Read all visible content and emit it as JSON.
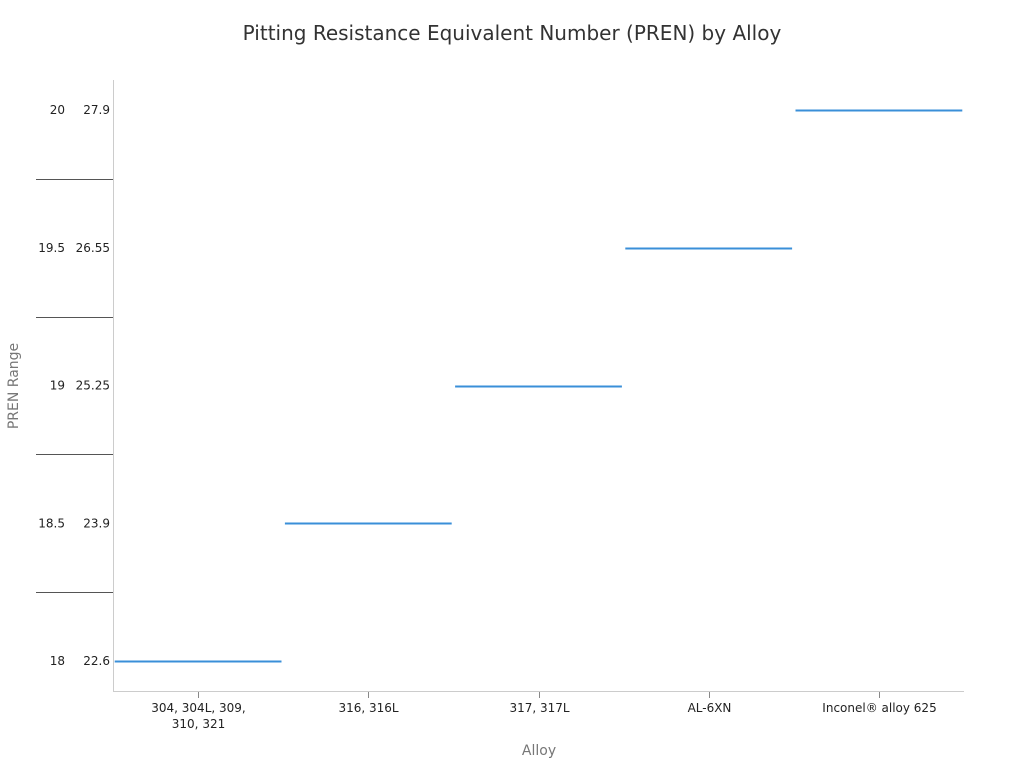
{
  "chart_data": {
    "type": "bar",
    "title": "Pitting Resistance Equivalent Number (PREN) by Alloy",
    "xlabel": "Alloy",
    "ylabel": "PREN Range",
    "categories": [
      [
        "304, 304L, 309,",
        "310, 321"
      ],
      [
        "316, 316L"
      ],
      [
        "317, 317L"
      ],
      [
        "AL-6XN"
      ],
      [
        "Inconel® alloy 625"
      ]
    ],
    "y_levels_outer": [
      "18",
      "18.5",
      "19",
      "19.5",
      "20"
    ],
    "y_levels_inner": [
      "22.6",
      "23.9",
      "25.25",
      "26.55",
      "27.9"
    ],
    "values": [
      0,
      1,
      2,
      3,
      4
    ],
    "series_color": "#3a8fd8",
    "grid": false,
    "legend": "none"
  }
}
